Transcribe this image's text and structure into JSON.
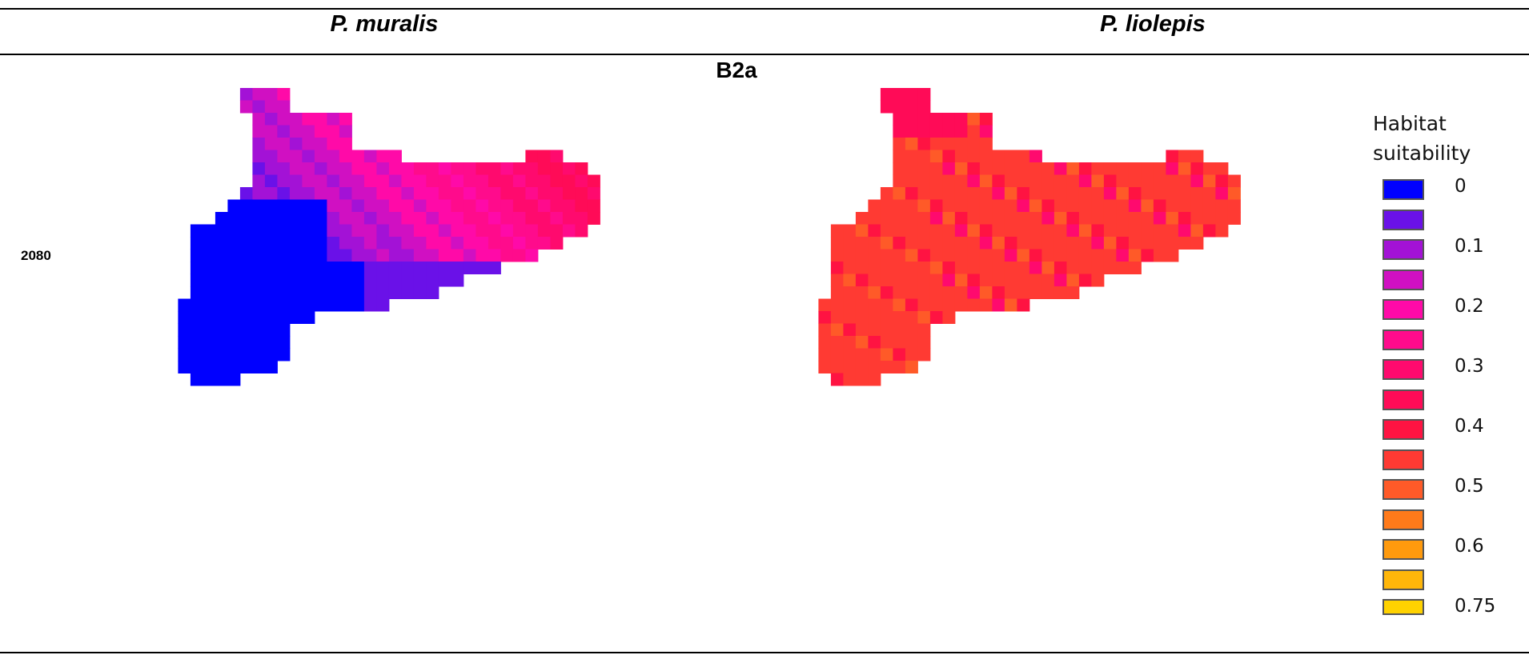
{
  "header": {
    "species_left": "P. muralis",
    "species_right": "P. liolepis",
    "scenario": "B2a",
    "row_label": "2080"
  },
  "legend": {
    "title_line1": "Habitat",
    "title_line2": "suitability",
    "colors": [
      "#0000ff",
      "#6a11e8",
      "#a312d6",
      "#d010c2",
      "#ff0aa8",
      "#ff0b8c",
      "#ff0a6e",
      "#ff0b57",
      "#ff1342",
      "#ff3a33",
      "#ff5a28",
      "#ff7a1a",
      "#ff9a0d",
      "#ffb60a",
      "#ffd200"
    ],
    "labels": [
      "0",
      "0.1",
      "0.2",
      "0.3",
      "0.4",
      "0.5",
      "0.6",
      "0.75"
    ],
    "label_slots": [
      0,
      2,
      4,
      6,
      8,
      10,
      12,
      14
    ]
  },
  "maps": {
    "left_species_base": "#0000ff",
    "right_species_base": "#ff3a33"
  }
}
